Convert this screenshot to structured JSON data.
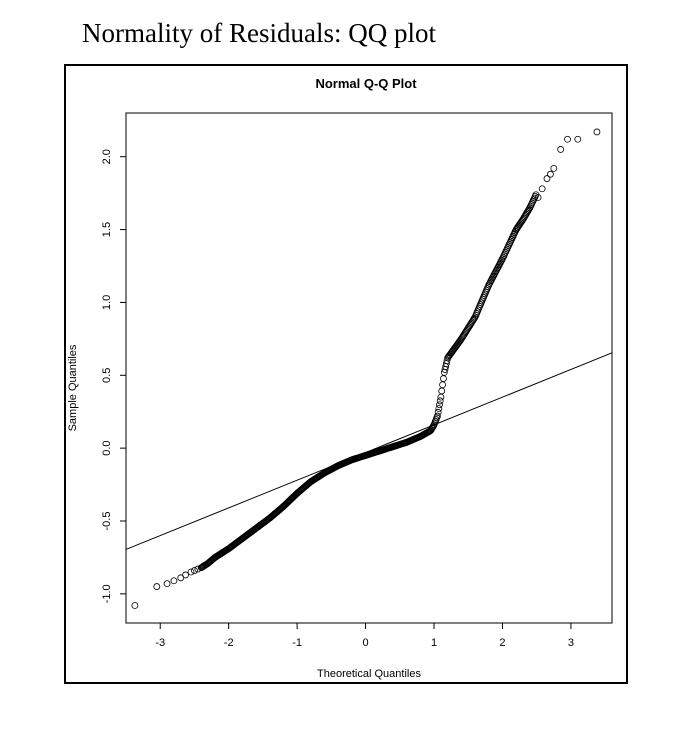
{
  "caption": "Normality of Residuals: QQ plot",
  "chart_data": {
    "type": "scatter",
    "title": "Normal Q-Q Plot",
    "xlabel": "Theoretical Quantiles",
    "ylabel": "Sample Quantiles",
    "xlim": [
      -3.5,
      3.6
    ],
    "ylim": [
      -1.2,
      2.3
    ],
    "x_ticks": [
      -3,
      -2,
      -1,
      0,
      1,
      2,
      3
    ],
    "y_ticks": [
      -1.0,
      -0.5,
      0.0,
      0.5,
      1.0,
      1.5,
      2.0
    ],
    "x_tick_labels": [
      "-3",
      "-2",
      "-1",
      "0",
      "1",
      "2",
      "3"
    ],
    "y_tick_labels": [
      "-1.0",
      "-0.5",
      "0.0",
      "0.5",
      "1.0",
      "1.5",
      "2.0"
    ],
    "grid": false,
    "reference_line": {
      "intercept": -0.03,
      "slope": 0.19
    },
    "quantile_curve": [
      [
        -3.37,
        -1.08
      ],
      [
        -3.05,
        -0.95
      ],
      [
        -2.9,
        -0.93
      ],
      [
        -2.8,
        -0.91
      ],
      [
        -2.7,
        -0.89
      ],
      [
        -2.6,
        -0.86
      ],
      [
        -2.5,
        -0.84
      ],
      [
        -2.4,
        -0.82
      ],
      [
        -2.3,
        -0.79
      ],
      [
        -2.2,
        -0.75
      ],
      [
        -2.0,
        -0.69
      ],
      [
        -1.8,
        -0.62
      ],
      [
        -1.6,
        -0.55
      ],
      [
        -1.4,
        -0.48
      ],
      [
        -1.2,
        -0.4
      ],
      [
        -1.0,
        -0.31
      ],
      [
        -0.8,
        -0.23
      ],
      [
        -0.6,
        -0.17
      ],
      [
        -0.4,
        -0.12
      ],
      [
        -0.2,
        -0.08
      ],
      [
        0.0,
        -0.05
      ],
      [
        0.2,
        -0.02
      ],
      [
        0.4,
        0.01
      ],
      [
        0.6,
        0.04
      ],
      [
        0.8,
        0.08
      ],
      [
        0.95,
        0.12
      ],
      [
        1.0,
        0.16
      ],
      [
        1.05,
        0.22
      ],
      [
        1.1,
        0.35
      ],
      [
        1.15,
        0.52
      ],
      [
        1.2,
        0.62
      ],
      [
        1.4,
        0.75
      ],
      [
        1.6,
        0.9
      ],
      [
        1.8,
        1.12
      ],
      [
        2.0,
        1.3
      ],
      [
        2.1,
        1.4
      ],
      [
        2.2,
        1.5
      ],
      [
        2.3,
        1.57
      ],
      [
        2.4,
        1.65
      ],
      [
        2.5,
        1.75
      ],
      [
        2.6,
        1.85
      ],
      [
        2.7,
        1.92
      ],
      [
        2.85,
        2.05
      ],
      [
        2.95,
        2.12
      ],
      [
        3.1,
        2.12
      ],
      [
        3.38,
        2.17
      ]
    ],
    "tail_points": [
      [
        -3.37,
        -1.08
      ],
      [
        -3.05,
        -0.95
      ],
      [
        -2.9,
        -0.93
      ],
      [
        -2.8,
        -0.91
      ],
      [
        -2.7,
        -0.89
      ],
      [
        -2.63,
        -0.87
      ],
      [
        -2.55,
        -0.85
      ],
      [
        -2.5,
        -0.84
      ],
      [
        -2.45,
        -0.83
      ],
      [
        -2.4,
        -0.82
      ],
      [
        2.52,
        1.72
      ],
      [
        2.58,
        1.78
      ],
      [
        2.65,
        1.85
      ],
      [
        2.7,
        1.88
      ],
      [
        2.75,
        1.92
      ],
      [
        2.85,
        2.05
      ],
      [
        2.95,
        2.12
      ],
      [
        3.1,
        2.12
      ],
      [
        3.38,
        2.17
      ]
    ]
  }
}
